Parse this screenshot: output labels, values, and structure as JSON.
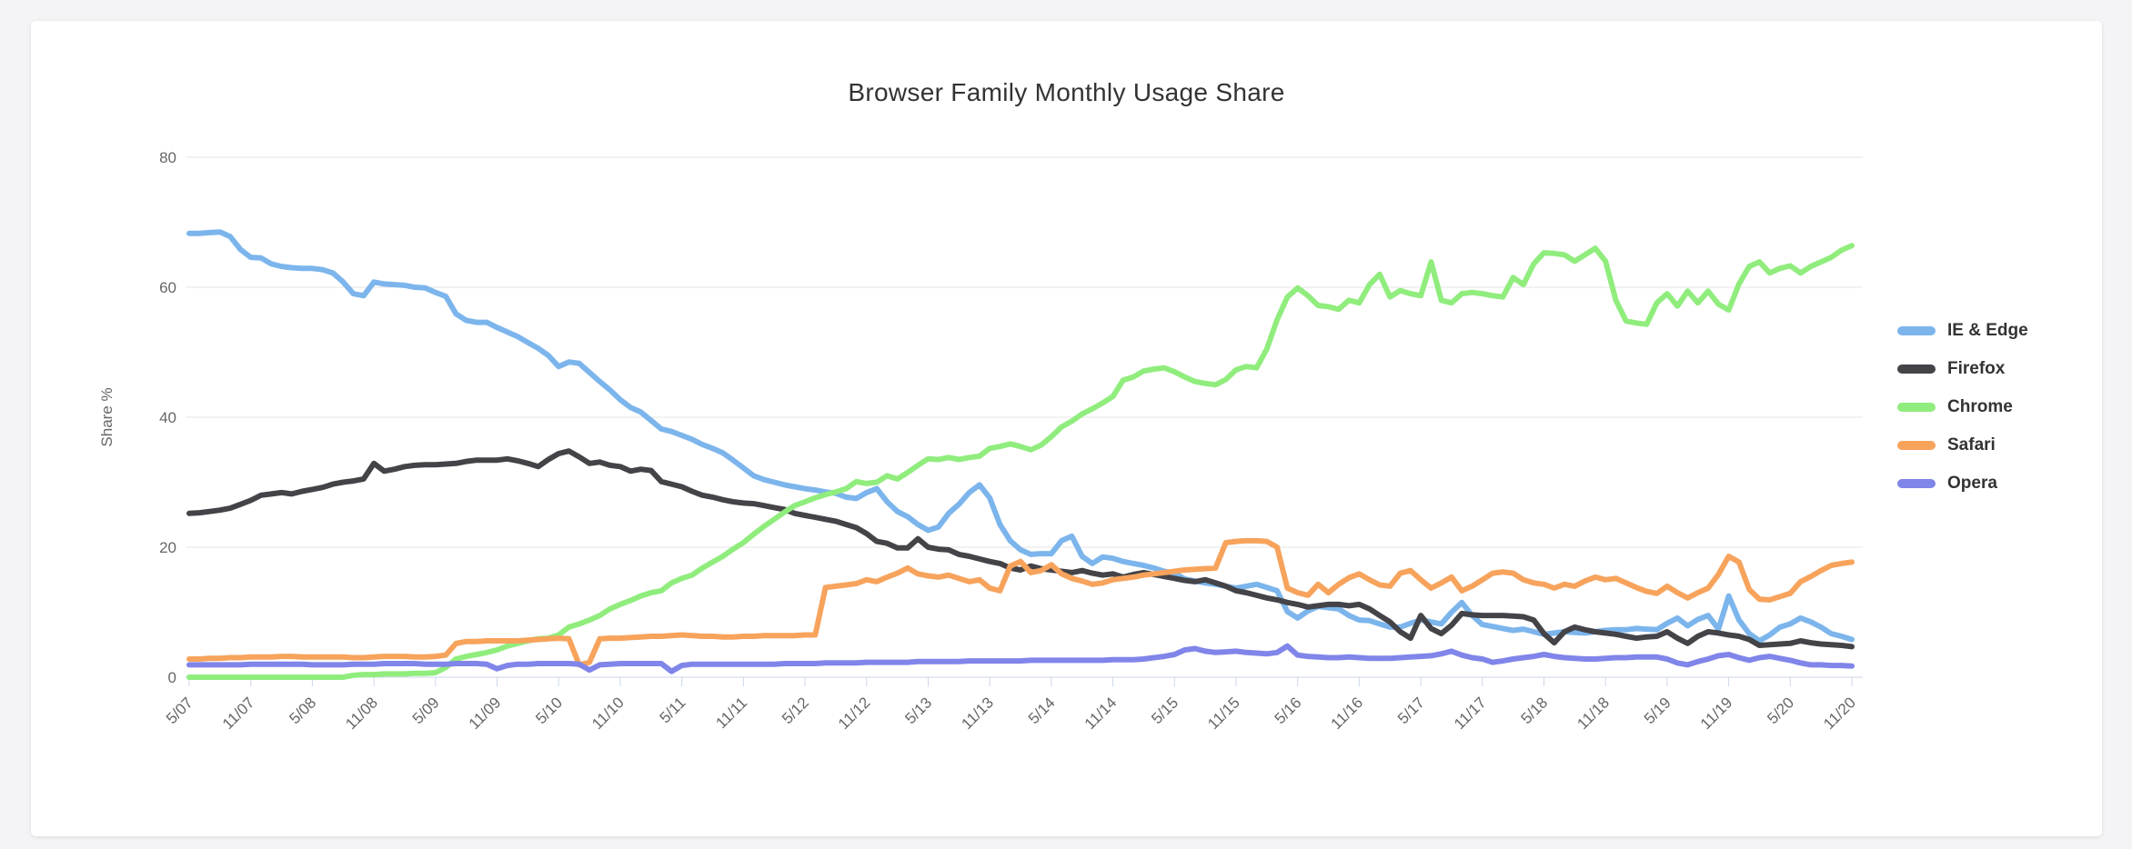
{
  "page": {
    "background": "#f4f4f6",
    "card_background": "#ffffff"
  },
  "chart_data": {
    "type": "line",
    "title": "Browser Family Monthly Usage Share",
    "ylabel": "Share %",
    "xlabel": "",
    "ylim": [
      0,
      80
    ],
    "yticks": [
      0,
      20,
      40,
      60,
      80
    ],
    "grid": "horizontal",
    "legend_position": "right-middle",
    "x_unit": "month",
    "x_range": "5/07 to 11/20 monthly",
    "tick_every_n_points": 6,
    "tick_labels": [
      "5/07",
      "11/07",
      "5/08",
      "11/08",
      "5/09",
      "11/09",
      "5/10",
      "11/10",
      "5/11",
      "11/11",
      "5/12",
      "11/12",
      "5/13",
      "11/13",
      "5/14",
      "11/14",
      "5/15",
      "11/15",
      "5/16",
      "11/16",
      "5/17",
      "11/17",
      "5/18",
      "11/18",
      "5/19",
      "11/19",
      "5/20",
      "11/20"
    ],
    "axis_colors": {
      "grid": "#e6e6e6",
      "axis_line": "#ccd6eb",
      "tick": "#ccd6eb",
      "labels": "#666666",
      "title": "#333333"
    },
    "series": [
      {
        "name": "IE & Edge",
        "color": "#7cb5ec",
        "values": [
          68.3,
          68.3,
          68.4,
          68.5,
          67.8,
          65.8,
          64.6,
          64.5,
          63.6,
          63.2,
          63,
          62.9,
          62.9,
          62.7,
          62.2,
          60.8,
          59,
          58.7,
          60.8,
          60.5,
          60.4,
          60.3,
          60,
          59.9,
          59.2,
          58.6,
          55.9,
          54.9,
          54.6,
          54.6,
          53.8,
          53.1,
          52.4,
          51.5,
          50.6,
          49.5,
          47.8,
          48.5,
          48.3,
          46.9,
          45.5,
          44.2,
          42.7,
          41.5,
          40.8,
          39.5,
          38.2,
          37.8,
          37.2,
          36.6,
          35.8,
          35.2,
          34.5,
          33.4,
          32.2,
          31,
          30.4,
          30,
          29.6,
          29.3,
          29,
          28.8,
          28.5,
          28.3,
          27.7,
          27.5,
          28.4,
          29,
          27,
          25.5,
          24.7,
          23.5,
          22.6,
          23.1,
          25.2,
          26.6,
          28.4,
          29.6,
          27.6,
          23.5,
          21,
          19.6,
          18.9,
          19,
          19,
          21,
          21.7,
          18.6,
          17.5,
          18.5,
          18.3,
          17.8,
          17.5,
          17.2,
          16.8,
          16.3,
          16,
          15.1,
          14.8,
          14.5,
          14.3,
          14,
          13.7,
          14,
          14.3,
          13.8,
          13.3,
          10.1,
          9.1,
          10.2,
          10.9,
          10.7,
          10.5,
          9.5,
          8.8,
          8.7,
          8.2,
          7.7,
          7.7,
          8.3,
          8.8,
          8.5,
          8.2,
          10,
          11.5,
          9.5,
          8.1,
          7.8,
          7.5,
          7.2,
          7.4,
          7,
          6.6,
          6.8,
          7,
          6.9,
          6.8,
          7,
          7.2,
          7.3,
          7.3,
          7.5,
          7.4,
          7.3,
          8.3,
          9.1,
          7.9,
          8.9,
          9.5,
          7.4,
          12.5,
          8.8,
          6.7,
          5.6,
          6.5,
          7.7,
          8.2,
          9.1,
          8.5,
          7.7,
          6.7,
          6.3,
          5.8
        ]
      },
      {
        "name": "Firefox",
        "color": "#434348",
        "values": [
          25.2,
          25.3,
          25.5,
          25.7,
          26,
          26.6,
          27.2,
          28,
          28.2,
          28.4,
          28.2,
          28.6,
          28.9,
          29.2,
          29.7,
          30,
          30.2,
          30.5,
          32.9,
          31.7,
          32,
          32.4,
          32.6,
          32.7,
          32.7,
          32.8,
          32.9,
          33.2,
          33.4,
          33.4,
          33.4,
          33.6,
          33.3,
          32.9,
          32.4,
          33.5,
          34.4,
          34.8,
          33.9,
          32.9,
          33.1,
          32.6,
          32.4,
          31.7,
          32,
          31.8,
          30.1,
          29.7,
          29.3,
          28.6,
          28,
          27.7,
          27.3,
          27,
          26.8,
          26.7,
          26.4,
          26.1,
          25.8,
          25.2,
          24.9,
          24.6,
          24.3,
          24,
          23.5,
          23,
          22.1,
          20.9,
          20.6,
          19.9,
          19.9,
          21.3,
          20,
          19.7,
          19.6,
          18.9,
          18.6,
          18.2,
          17.8,
          17.5,
          16.8,
          16.5,
          17.1,
          16.7,
          16.5,
          16.3,
          16.1,
          16.4,
          16,
          15.7,
          15.9,
          15.4,
          15.8,
          16.1,
          15.8,
          15.5,
          15.2,
          14.9,
          14.7,
          15,
          14.5,
          14,
          13.3,
          13,
          12.6,
          12.2,
          11.9,
          11.5,
          11.2,
          10.8,
          11,
          11.2,
          11.2,
          11,
          11.2,
          10.5,
          9.5,
          8.5,
          7,
          6,
          9.5,
          7.5,
          6.7,
          8,
          9.8,
          9.6,
          9.5,
          9.5,
          9.5,
          9.4,
          9.3,
          8.8,
          6.7,
          5.3,
          7,
          7.7,
          7.3,
          7,
          6.8,
          6.6,
          6.3,
          6,
          6.2,
          6.3,
          7,
          6,
          5.2,
          6.3,
          7,
          6.8,
          6.5,
          6.3,
          5.8,
          4.9,
          5,
          5.1,
          5.2,
          5.6,
          5.3,
          5.1,
          5,
          4.9,
          4.7
        ]
      },
      {
        "name": "Chrome",
        "color": "#90ed7d",
        "values": [
          0,
          0,
          0,
          0,
          0,
          0,
          0,
          0,
          0,
          0,
          0,
          0,
          0,
          0,
          0,
          0,
          0.3,
          0.4,
          0.4,
          0.5,
          0.5,
          0.5,
          0.6,
          0.6,
          0.7,
          1.5,
          2.8,
          3.2,
          3.5,
          3.8,
          4.2,
          4.8,
          5.2,
          5.6,
          5.9,
          6,
          6.5,
          7.7,
          8.2,
          8.8,
          9.5,
          10.5,
          11.2,
          11.8,
          12.5,
          13,
          13.3,
          14.5,
          15.2,
          15.7,
          16.8,
          17.7,
          18.6,
          19.7,
          20.7,
          22,
          23.2,
          24.3,
          25.4,
          26.4,
          27,
          27.6,
          28.1,
          28.5,
          29,
          30.1,
          29.8,
          30,
          31,
          30.5,
          31.5,
          32.6,
          33.6,
          33.5,
          33.8,
          33.5,
          33.8,
          34,
          35.2,
          35.5,
          35.9,
          35.5,
          35,
          35.7,
          37,
          38.5,
          39.4,
          40.5,
          41.3,
          42.2,
          43.2,
          45.7,
          46.2,
          47.1,
          47.4,
          47.6,
          47,
          46.2,
          45.5,
          45.2,
          45,
          45.8,
          47.3,
          47.8,
          47.6,
          50.5,
          55,
          58.5,
          59.9,
          58.7,
          57.2,
          57,
          56.6,
          58,
          57.6,
          60.4,
          62,
          58.5,
          59.5,
          59,
          58.7,
          63.9,
          58,
          57.6,
          59,
          59.2,
          59,
          58.7,
          58.5,
          61.5,
          60.4,
          63.6,
          65.3,
          65.2,
          65,
          64,
          65,
          66,
          64,
          58,
          54.8,
          54.5,
          54.3,
          57.6,
          59,
          57.1,
          59.4,
          57.6,
          59.4,
          57.4,
          56.5,
          60.5,
          63.2,
          63.9,
          62.2,
          62.9,
          63.3,
          62.2,
          63.2,
          63.9,
          64.6,
          65.7,
          66.4
        ]
      },
      {
        "name": "Safari",
        "color": "#f7a35c",
        "values": [
          2.8,
          2.8,
          2.9,
          2.9,
          3,
          3,
          3.1,
          3.1,
          3.1,
          3.2,
          3.2,
          3.1,
          3.1,
          3.1,
          3.1,
          3.1,
          3,
          3,
          3.1,
          3.2,
          3.2,
          3.2,
          3.1,
          3.1,
          3.2,
          3.4,
          5.2,
          5.5,
          5.5,
          5.6,
          5.6,
          5.6,
          5.6,
          5.7,
          5.8,
          5.9,
          6,
          5.9,
          1.9,
          2.3,
          5.9,
          6,
          6,
          6.1,
          6.2,
          6.3,
          6.3,
          6.4,
          6.5,
          6.4,
          6.3,
          6.3,
          6.2,
          6.2,
          6.3,
          6.3,
          6.4,
          6.4,
          6.4,
          6.4,
          6.5,
          6.5,
          13.8,
          14,
          14.2,
          14.4,
          15,
          14.7,
          15.4,
          16,
          16.8,
          15.9,
          15.6,
          15.4,
          15.7,
          15.2,
          14.7,
          15,
          13.7,
          13.3,
          17.1,
          17.8,
          16.1,
          16.4,
          17.3,
          15.9,
          15.2,
          14.8,
          14.3,
          14.5,
          15,
          15.2,
          15.4,
          15.7,
          15.9,
          16.1,
          16.3,
          16.5,
          16.6,
          16.7,
          16.8,
          20.7,
          20.9,
          21,
          21,
          20.9,
          20,
          13.7,
          13,
          12.6,
          14.3,
          13,
          14.3,
          15.3,
          15.9,
          15,
          14.2,
          14,
          16,
          16.4,
          15,
          13.7,
          14.5,
          15.4,
          13.3,
          14,
          15,
          16,
          16.2,
          16,
          15,
          14.5,
          14.3,
          13.7,
          14.3,
          14,
          14.8,
          15.4,
          15,
          15.2,
          14.5,
          13.8,
          13.2,
          12.9,
          14,
          13,
          12.2,
          13,
          13.7,
          15.8,
          18.6,
          17.7,
          13.5,
          12,
          11.9,
          12.4,
          12.9,
          14.7,
          15.5,
          16.4,
          17.2,
          17.5,
          17.7
        ]
      },
      {
        "name": "Opera",
        "color": "#8085e9",
        "values": [
          1.9,
          1.9,
          1.9,
          1.9,
          1.9,
          1.9,
          2,
          2,
          2,
          2,
          2,
          2,
          1.9,
          1.9,
          1.9,
          1.9,
          2,
          2,
          2,
          2.1,
          2.1,
          2.1,
          2.1,
          2,
          2,
          2,
          2.1,
          2.1,
          2.1,
          2,
          1.3,
          1.8,
          2,
          2,
          2.1,
          2.1,
          2.1,
          2.1,
          2,
          1.1,
          1.9,
          2,
          2.1,
          2.1,
          2.1,
          2.1,
          2.1,
          0.9,
          1.8,
          2,
          2,
          2,
          2,
          2,
          2,
          2,
          2,
          2,
          2.1,
          2.1,
          2.1,
          2.1,
          2.2,
          2.2,
          2.2,
          2.2,
          2.3,
          2.3,
          2.3,
          2.3,
          2.3,
          2.4,
          2.4,
          2.4,
          2.4,
          2.4,
          2.5,
          2.5,
          2.5,
          2.5,
          2.5,
          2.5,
          2.6,
          2.6,
          2.6,
          2.6,
          2.6,
          2.6,
          2.6,
          2.6,
          2.7,
          2.7,
          2.7,
          2.8,
          3,
          3.2,
          3.5,
          4.2,
          4.4,
          4,
          3.8,
          3.9,
          4,
          3.8,
          3.7,
          3.6,
          3.8,
          4.8,
          3.4,
          3.2,
          3.1,
          3,
          3,
          3.1,
          3,
          2.9,
          2.9,
          2.9,
          3,
          3.1,
          3.2,
          3.3,
          3.6,
          4,
          3.4,
          3,
          2.8,
          2.3,
          2.5,
          2.8,
          3,
          3.2,
          3.5,
          3.2,
          3,
          2.9,
          2.8,
          2.8,
          2.9,
          3,
          3,
          3.1,
          3.1,
          3.1,
          2.8,
          2.2,
          1.9,
          2.4,
          2.8,
          3.3,
          3.5,
          3,
          2.6,
          3,
          3.2,
          2.9,
          2.6,
          2.2,
          1.9,
          1.9,
          1.8,
          1.8,
          1.7
        ]
      }
    ]
  }
}
